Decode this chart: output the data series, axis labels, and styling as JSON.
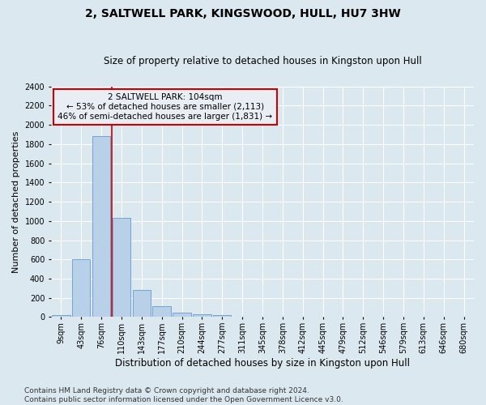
{
  "title": "2, SALTWELL PARK, KINGSWOOD, HULL, HU7 3HW",
  "subtitle": "Size of property relative to detached houses in Kingston upon Hull",
  "xlabel": "Distribution of detached houses by size in Kingston upon Hull",
  "ylabel": "Number of detached properties",
  "bin_labels": [
    "9sqm",
    "43sqm",
    "76sqm",
    "110sqm",
    "143sqm",
    "177sqm",
    "210sqm",
    "244sqm",
    "277sqm",
    "311sqm",
    "345sqm",
    "378sqm",
    "412sqm",
    "445sqm",
    "479sqm",
    "512sqm",
    "546sqm",
    "579sqm",
    "613sqm",
    "646sqm",
    "680sqm"
  ],
  "bar_values": [
    20,
    600,
    1880,
    1030,
    285,
    115,
    47,
    30,
    20,
    0,
    0,
    0,
    0,
    0,
    0,
    0,
    0,
    0,
    0,
    0,
    0
  ],
  "bar_color": "#b8d0e8",
  "bar_edgecolor": "#6699cc",
  "vline_color": "#cc0000",
  "vline_x_index": 2.5,
  "annotation_text": "2 SALTWELL PARK: 104sqm\n← 53% of detached houses are smaller (2,113)\n46% of semi-detached houses are larger (1,831) →",
  "annotation_box_edgecolor": "#cc0000",
  "annotation_box_facecolor": "#e8eef4",
  "ylim": [
    0,
    2400
  ],
  "yticks": [
    0,
    200,
    400,
    600,
    800,
    1000,
    1200,
    1400,
    1600,
    1800,
    2000,
    2200,
    2400
  ],
  "footnote": "Contains HM Land Registry data © Crown copyright and database right 2024.\nContains public sector information licensed under the Open Government Licence v3.0.",
  "background_color": "#dce8f0",
  "grid_color": "#ffffff",
  "title_fontsize": 10,
  "subtitle_fontsize": 8.5,
  "xlabel_fontsize": 8.5,
  "ylabel_fontsize": 8,
  "tick_fontsize": 7,
  "annotation_fontsize": 7.5,
  "footnote_fontsize": 6.5
}
